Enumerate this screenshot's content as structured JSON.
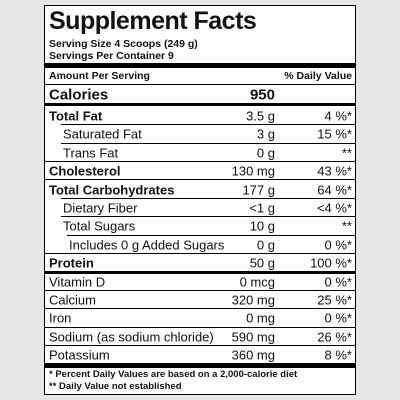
{
  "title": "Supplement Facts",
  "serving_size": "Serving Size  4 Scoops (249 g)",
  "servings_per_container": "Servings Per Container  9",
  "header": {
    "amount": "Amount Per Serving",
    "dv": "% Daily Value"
  },
  "calories": {
    "name": "Calories",
    "amount": "950"
  },
  "rows": [
    {
      "name": "Total Fat",
      "amount": "3.5 g",
      "dv": "4 %*",
      "bold": true,
      "indent": 0
    },
    {
      "name": "Saturated Fat",
      "amount": "3 g",
      "dv": "15 %*",
      "bold": false,
      "indent": 1
    },
    {
      "name": "Trans Fat",
      "amount": "0 g",
      "dv": "**",
      "bold": false,
      "indent": 1
    },
    {
      "name": "Cholesterol",
      "amount": "130 mg",
      "dv": "43 %*",
      "bold": true,
      "indent": 0
    },
    {
      "name": "Total Carbohydrates",
      "amount": "177 g",
      "dv": "64 %*",
      "bold": true,
      "indent": 0
    },
    {
      "name": "Dietary Fiber",
      "amount": "<1 g",
      "dv": "<4 %*",
      "bold": false,
      "indent": 1
    },
    {
      "name": "Total Sugars",
      "amount": "10 g",
      "dv": "**",
      "bold": false,
      "indent": 1
    },
    {
      "name": "Includes 0 g Added Sugars",
      "amount": "0 g",
      "dv": "0 %*",
      "bold": false,
      "indent": 2
    },
    {
      "name": "Protein",
      "amount": "50 g",
      "dv": "100 %*",
      "bold": true,
      "indent": 0
    },
    {
      "name": "Vitamin D",
      "amount": "0 mcg",
      "dv": "0 %*",
      "bold": false,
      "indent": 0
    },
    {
      "name": "Calcium",
      "amount": "320 mg",
      "dv": "25 %*",
      "bold": false,
      "indent": 0
    },
    {
      "name": "Iron",
      "amount": "0 mg",
      "dv": "0 %*",
      "bold": false,
      "indent": 0
    },
    {
      "name": "Sodium (as sodium chloride)",
      "amount": "590 mg",
      "dv": "26 %*",
      "bold": false,
      "indent": 0
    },
    {
      "name": "Potassium",
      "amount": "360 mg",
      "dv": "8 %*",
      "bold": false,
      "indent": 0
    }
  ],
  "footnotes": [
    "* Percent Daily Values are based on a 2,000-calorie diet",
    "** Daily Value not established"
  ]
}
